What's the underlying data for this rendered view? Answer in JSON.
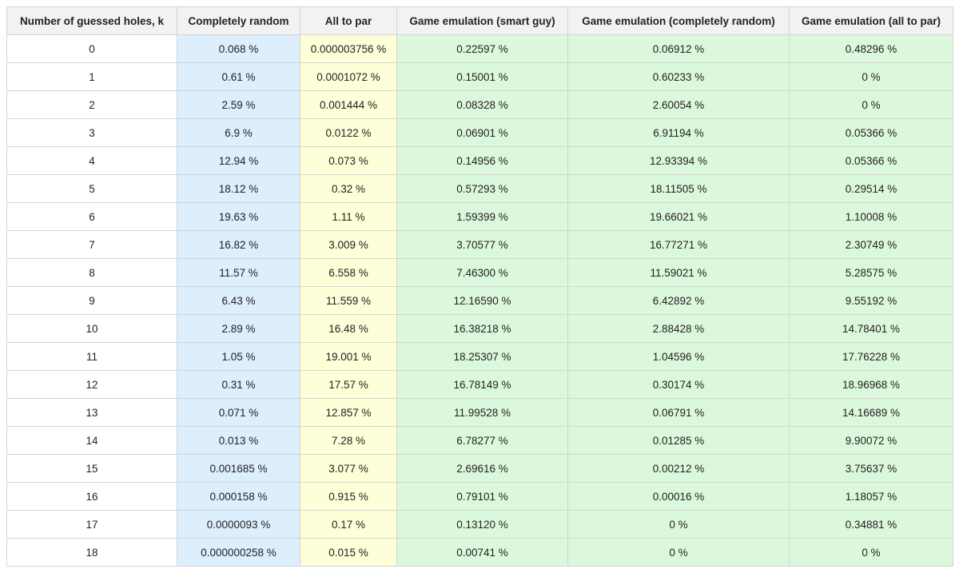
{
  "table": {
    "headers": [
      "Number of guessed holes, k",
      "Completely random",
      "All to par",
      "Game emulation (smart guy)",
      "Game emulation (completely random)",
      "Game emulation (all to par)"
    ],
    "rows": [
      [
        "0",
        "0.068 %",
        "0.000003756 %",
        "0.22597 %",
        "0.06912 %",
        "0.48296 %"
      ],
      [
        "1",
        "0.61 %",
        "0.0001072 %",
        "0.15001 %",
        "0.60233 %",
        "0 %"
      ],
      [
        "2",
        "2.59 %",
        "0.001444 %",
        "0.08328 %",
        "2.60054 %",
        "0 %"
      ],
      [
        "3",
        "6.9 %",
        "0.0122 %",
        "0.06901 %",
        "6.91194 %",
        "0.05366 %"
      ],
      [
        "4",
        "12.94 %",
        "0.073 %",
        "0.14956 %",
        "12.93394 %",
        "0.05366 %"
      ],
      [
        "5",
        "18.12 %",
        "0.32 %",
        "0.57293 %",
        "18.11505 %",
        "0.29514 %"
      ],
      [
        "6",
        "19.63 %",
        "1.11 %",
        "1.59399 %",
        "19.66021 %",
        "1.10008 %"
      ],
      [
        "7",
        "16.82 %",
        "3.009 %",
        "3.70577 %",
        "16.77271 %",
        "2.30749 %"
      ],
      [
        "8",
        "11.57 %",
        "6.558 %",
        "7.46300 %",
        "11.59021 %",
        "5.28575 %"
      ],
      [
        "9",
        "6.43 %",
        "11.559 %",
        "12.16590 %",
        "6.42892 %",
        "9.55192 %"
      ],
      [
        "10",
        "2.89 %",
        "16.48 %",
        "16.38218 %",
        "2.88428 %",
        "14.78401 %"
      ],
      [
        "11",
        "1.05 %",
        "19.001 %",
        "18.25307 %",
        "1.04596 %",
        "17.76228 %"
      ],
      [
        "12",
        "0.31 %",
        "17.57 %",
        "16.78149 %",
        "0.30174 %",
        "18.96968 %"
      ],
      [
        "13",
        "0.071 %",
        "12.857 %",
        "11.99528 %",
        "0.06791 %",
        "14.16689 %"
      ],
      [
        "14",
        "0.013 %",
        "7.28 %",
        "6.78277 %",
        "0.01285 %",
        "9.90072 %"
      ],
      [
        "15",
        "0.001685 %",
        "3.077 %",
        "2.69616 %",
        "0.00212 %",
        "3.75637 %"
      ],
      [
        "16",
        "0.000158 %",
        "0.915 %",
        "0.79101 %",
        "0.00016 %",
        "1.18057 %"
      ],
      [
        "17",
        "0.0000093 %",
        "0.17 %",
        "0.13120 %",
        "0 %",
        "0.34881 %"
      ],
      [
        "18",
        "0.000000258 %",
        "0.015 %",
        "0.00741 %",
        "0 %",
        "0 %"
      ]
    ]
  },
  "colors": {
    "header_bg": "#f2f2f2",
    "completely_random_bg": "#ddeefd",
    "all_to_par_bg": "#fefed8",
    "game_emulation_bg": "#dcf8dc",
    "border": "#d4d4d4"
  }
}
